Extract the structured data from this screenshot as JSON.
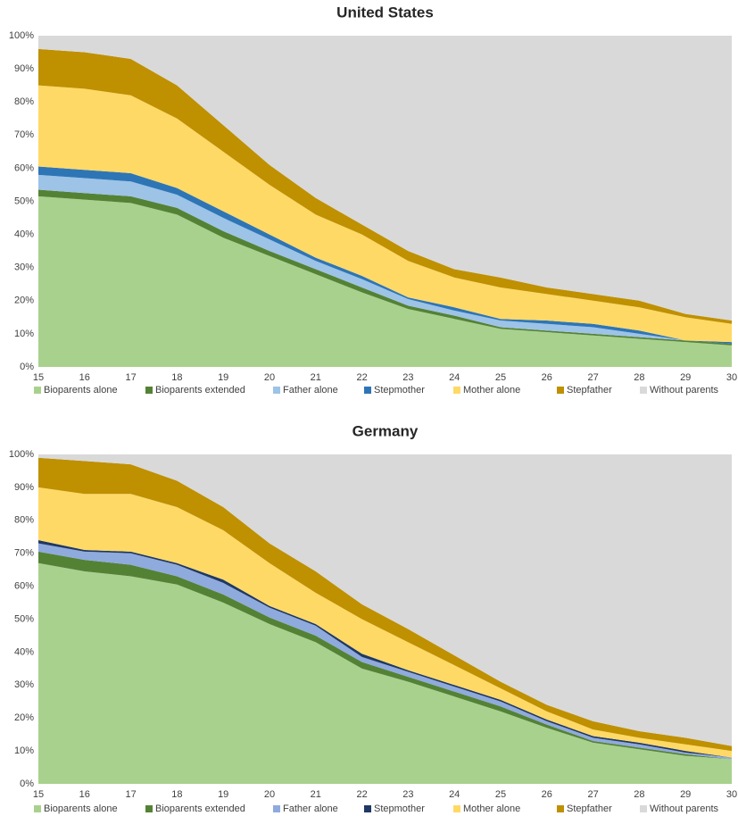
{
  "chart_data": [
    {
      "type": "area",
      "stacked": true,
      "title": "United States",
      "x": [
        15,
        16,
        17,
        18,
        19,
        20,
        21,
        22,
        23,
        24,
        25,
        26,
        27,
        28,
        29,
        30
      ],
      "xlim": [
        15,
        30
      ],
      "xticks": [
        15,
        16,
        17,
        18,
        19,
        20,
        21,
        22,
        23,
        24,
        25,
        26,
        27,
        28,
        29,
        30
      ],
      "ylim": [
        0,
        100
      ],
      "yticks": [
        {
          "value": 0,
          "label": "0%"
        },
        {
          "value": 10,
          "label": "10%"
        },
        {
          "value": 20,
          "label": "20%"
        },
        {
          "value": 30,
          "label": "30%"
        },
        {
          "value": 40,
          "label": "40%"
        },
        {
          "value": 50,
          "label": "50%"
        },
        {
          "value": 60,
          "label": "60%"
        },
        {
          "value": 70,
          "label": "70%"
        },
        {
          "value": 80,
          "label": "80%"
        },
        {
          "value": 90,
          "label": "90%"
        },
        {
          "value": 100,
          "label": "100%"
        }
      ],
      "series": [
        {
          "name": "Bioparents alone",
          "color": "#a9d18e",
          "values": [
            51.5,
            50.5,
            49.5,
            46,
            39,
            33.5,
            28,
            22.5,
            17.5,
            14.5,
            11.5,
            10.5,
            9.5,
            8.5,
            7.5,
            6.5
          ]
        },
        {
          "name": "Bioparents extended",
          "color": "#548235",
          "values": [
            2,
            2,
            2,
            2,
            2,
            1.5,
            1.5,
            1.5,
            1,
            1,
            0.5,
            0.5,
            0.5,
            0.5,
            0.5,
            0.5
          ]
        },
        {
          "name": "Father alone",
          "color": "#9dc3e6",
          "values": [
            4.5,
            4.5,
            4.5,
            4,
            4,
            3.5,
            2.5,
            2.5,
            2,
            1.5,
            2,
            2,
            2,
            1,
            0,
            0
          ]
        },
        {
          "name": "Stepmother",
          "color": "#2e75b6",
          "values": [
            2.5,
            2.5,
            2.5,
            2,
            2,
            1.5,
            1,
            1,
            0.5,
            1,
            0.5,
            1,
            1,
            1,
            0,
            0.5
          ]
        },
        {
          "name": "Mother alone",
          "color": "#ffd966",
          "values": [
            24.5,
            24.5,
            23.5,
            21,
            18,
            15,
            13,
            12.5,
            11,
            9,
            9.5,
            8,
            7,
            7,
            7,
            5.5
          ]
        },
        {
          "name": "Stepfather",
          "color": "#bf9000",
          "values": [
            11,
            11,
            11,
            10,
            8,
            6,
            5,
            3,
            3,
            2.5,
            3,
            2,
            2,
            2,
            1,
            1
          ]
        },
        {
          "name": "Without parents",
          "color": "#d9d9d9",
          "values": [
            4,
            5,
            7,
            15,
            27,
            39,
            49,
            57,
            65,
            70.5,
            73,
            76,
            78,
            80,
            84,
            86
          ]
        }
      ]
    },
    {
      "type": "area",
      "stacked": true,
      "title": "Germany",
      "x": [
        15,
        16,
        17,
        18,
        19,
        20,
        21,
        22,
        23,
        24,
        25,
        26,
        27,
        28,
        29,
        30
      ],
      "xlim": [
        15,
        30
      ],
      "xticks": [
        15,
        16,
        17,
        18,
        19,
        20,
        21,
        22,
        23,
        24,
        25,
        26,
        27,
        28,
        29,
        30
      ],
      "ylim": [
        0,
        100
      ],
      "yticks": [
        {
          "value": 0,
          "label": "0%"
        },
        {
          "value": 10,
          "label": "10%"
        },
        {
          "value": 20,
          "label": "20%"
        },
        {
          "value": 30,
          "label": "30%"
        },
        {
          "value": 40,
          "label": "40%"
        },
        {
          "value": 50,
          "label": "50%"
        },
        {
          "value": 60,
          "label": "60%"
        },
        {
          "value": 70,
          "label": "70%"
        },
        {
          "value": 80,
          "label": "80%"
        },
        {
          "value": 90,
          "label": "90%"
        },
        {
          "value": 100,
          "label": "100%"
        }
      ],
      "series": [
        {
          "name": "Bioparents alone",
          "color": "#a9d18e",
          "values": [
            67,
            64.5,
            63,
            60.5,
            55,
            48.5,
            43,
            35,
            31,
            26.5,
            22,
            17,
            12.5,
            10.5,
            8.5,
            7.5
          ]
        },
        {
          "name": "Bioparents extended",
          "color": "#548235",
          "values": [
            3.5,
            3.5,
            3.5,
            2.5,
            2.5,
            2,
            2,
            2,
            1.5,
            1.5,
            1.5,
            1,
            0.5,
            0.5,
            0.5,
            0
          ]
        },
        {
          "name": "Father alone",
          "color": "#8faadc",
          "values": [
            2.5,
            2.5,
            3.5,
            3.5,
            3.5,
            3,
            3,
            1.5,
            1.5,
            1.5,
            1.5,
            1,
            1,
            1,
            0.5,
            0.5
          ]
        },
        {
          "name": "Stepmother",
          "color": "#1f3864",
          "values": [
            1,
            0.5,
            0.5,
            0.5,
            1,
            0.5,
            0.5,
            1,
            0.5,
            0.5,
            0.5,
            0.5,
            0.5,
            0.5,
            0.5,
            0
          ]
        },
        {
          "name": "Mother alone",
          "color": "#ffd966",
          "values": [
            16,
            17,
            17.5,
            17,
            15,
            13,
            9.5,
            10.5,
            8.5,
            6,
            3.5,
            2.5,
            2,
            1.5,
            2,
            2
          ]
        },
        {
          "name": "Stepfather",
          "color": "#bf9000",
          "values": [
            9,
            10,
            9,
            8,
            7,
            6,
            6.5,
            4.5,
            4,
            3,
            2,
            2,
            2.5,
            2,
            2,
            1.5
          ]
        },
        {
          "name": "Without parents",
          "color": "#d9d9d9",
          "values": [
            1,
            2,
            3,
            8,
            16,
            27,
            35.5,
            45.5,
            53,
            61,
            69,
            76,
            81,
            84,
            86,
            88.5
          ]
        }
      ]
    }
  ]
}
